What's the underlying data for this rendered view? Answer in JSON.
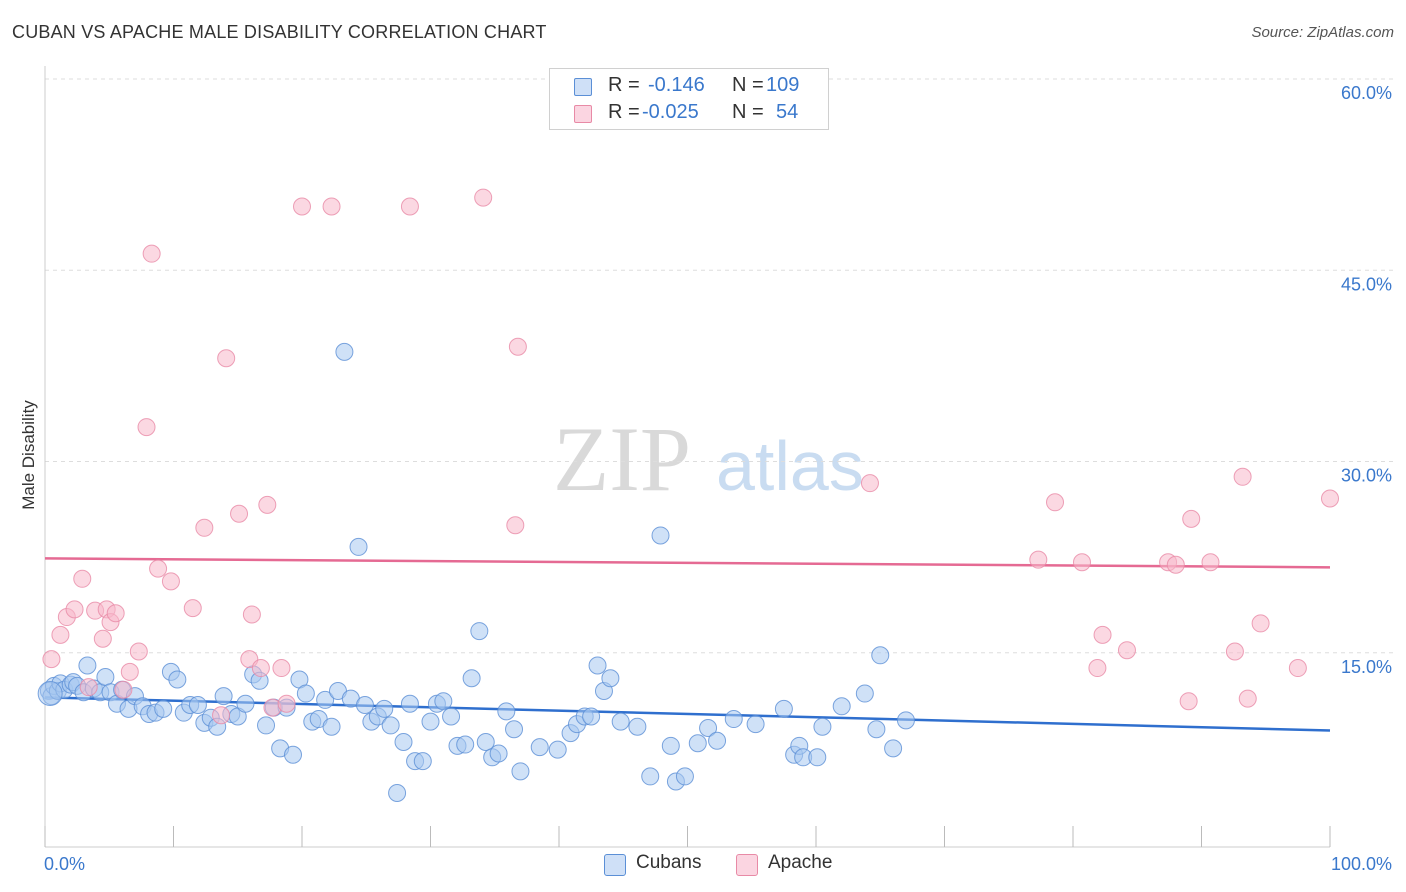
{
  "header": {
    "title": "CUBAN VS APACHE MALE DISABILITY CORRELATION CHART",
    "source": "Source: ZipAtlas.com"
  },
  "legend_top": {
    "rows": [
      {
        "r_label": "R =",
        "r_value": "-0.146",
        "n_label": "N =",
        "n_value": "109",
        "color": "#a8c8f0"
      },
      {
        "r_label": "R =",
        "r_value": "-0.025",
        "n_label": "N =",
        "n_value": "54",
        "color": "#f7b8cb"
      }
    ]
  },
  "bottom_legend": [
    {
      "label": "Cubans",
      "color": "#a8c8f0"
    },
    {
      "label": "Apache",
      "color": "#f7b8cb"
    }
  ],
  "watermark": {
    "zip": "ZIP",
    "atlas": "atlas"
  },
  "colors": {
    "blue_fill": "#a8c8f0",
    "blue_stroke": "#5b8fd6",
    "blue_line": "#2f6fce",
    "pink_fill": "#f7b8cb",
    "pink_stroke": "#e88aa6",
    "pink_line": "#e56a93",
    "tick_text": "#3a78cc",
    "grid": "#dddddd"
  },
  "chart_data": {
    "type": "scatter",
    "title": "CUBAN VS APACHE MALE DISABILITY CORRELATION CHART",
    "xlabel": "",
    "ylabel": "Male Disability",
    "xlim": [
      0,
      100
    ],
    "ylim": [
      0,
      60
    ],
    "x_tick_labels": [
      "0.0%",
      "100.0%"
    ],
    "y_ticks": [
      15,
      30,
      45,
      60
    ],
    "y_tick_labels": [
      "15.0%",
      "30.0%",
      "45.0%",
      "60.0%"
    ],
    "grid": true,
    "legend_position": "top-center",
    "series": [
      {
        "name": "Cubans",
        "r": -0.146,
        "n": 109,
        "trend": {
          "x": [
            0,
            100
          ],
          "y": [
            11.5,
            8.9
          ]
        },
        "points": [
          [
            0.3,
            12.0
          ],
          [
            0.5,
            11.6
          ],
          [
            0.7,
            12.4
          ],
          [
            1.0,
            12.0
          ],
          [
            1.2,
            12.6
          ],
          [
            1.5,
            12.1
          ],
          [
            2.0,
            12.5
          ],
          [
            2.2,
            12.7
          ],
          [
            2.5,
            12.4
          ],
          [
            3.0,
            11.9
          ],
          [
            3.3,
            14.0
          ],
          [
            3.8,
            12.2
          ],
          [
            4.3,
            11.9
          ],
          [
            4.7,
            13.1
          ],
          [
            5.1,
            11.9
          ],
          [
            5.6,
            11.0
          ],
          [
            6.0,
            12.1
          ],
          [
            6.5,
            10.6
          ],
          [
            7.0,
            11.6
          ],
          [
            7.6,
            10.8
          ],
          [
            8.1,
            10.2
          ],
          [
            8.6,
            10.3
          ],
          [
            9.2,
            10.6
          ],
          [
            9.8,
            13.5
          ],
          [
            10.3,
            12.9
          ],
          [
            10.8,
            10.3
          ],
          [
            11.3,
            10.9
          ],
          [
            11.9,
            10.9
          ],
          [
            12.4,
            9.5
          ],
          [
            12.9,
            9.9
          ],
          [
            13.4,
            9.2
          ],
          [
            13.9,
            11.6
          ],
          [
            14.5,
            10.2
          ],
          [
            15.0,
            10.0
          ],
          [
            15.6,
            11.0
          ],
          [
            16.2,
            13.3
          ],
          [
            16.7,
            12.8
          ],
          [
            17.2,
            9.3
          ],
          [
            17.8,
            10.7
          ],
          [
            18.3,
            7.5
          ],
          [
            18.8,
            10.7
          ],
          [
            19.3,
            7.0
          ],
          [
            19.8,
            12.9
          ],
          [
            20.3,
            11.8
          ],
          [
            20.8,
            9.6
          ],
          [
            21.3,
            9.8
          ],
          [
            21.8,
            11.3
          ],
          [
            22.3,
            9.2
          ],
          [
            22.8,
            12.0
          ],
          [
            23.3,
            38.6
          ],
          [
            23.8,
            11.4
          ],
          [
            24.4,
            23.3
          ],
          [
            24.9,
            10.9
          ],
          [
            25.4,
            9.6
          ],
          [
            25.9,
            10.0
          ],
          [
            26.4,
            10.6
          ],
          [
            26.9,
            9.3
          ],
          [
            27.4,
            4.0
          ],
          [
            27.9,
            8.0
          ],
          [
            28.4,
            11.0
          ],
          [
            28.8,
            6.5
          ],
          [
            29.4,
            6.5
          ],
          [
            30.0,
            9.6
          ],
          [
            30.5,
            11.0
          ],
          [
            31.0,
            11.2
          ],
          [
            31.6,
            10.0
          ],
          [
            32.1,
            7.7
          ],
          [
            32.7,
            7.8
          ],
          [
            33.2,
            13.0
          ],
          [
            33.8,
            16.7
          ],
          [
            34.3,
            8.0
          ],
          [
            34.8,
            6.8
          ],
          [
            35.3,
            7.1
          ],
          [
            35.9,
            10.4
          ],
          [
            36.5,
            9.0
          ],
          [
            37.0,
            5.7
          ],
          [
            38.5,
            7.6
          ],
          [
            39.9,
            7.4
          ],
          [
            40.9,
            8.7
          ],
          [
            41.4,
            9.4
          ],
          [
            42.0,
            10.0
          ],
          [
            42.5,
            10.0
          ],
          [
            43.0,
            14.0
          ],
          [
            43.5,
            12.0
          ],
          [
            44.0,
            13.0
          ],
          [
            44.8,
            9.6
          ],
          [
            46.1,
            9.2
          ],
          [
            47.1,
            5.3
          ],
          [
            47.9,
            24.2
          ],
          [
            48.7,
            7.7
          ],
          [
            49.1,
            4.9
          ],
          [
            49.8,
            5.3
          ],
          [
            50.8,
            7.9
          ],
          [
            51.6,
            9.1
          ],
          [
            52.3,
            8.1
          ],
          [
            53.6,
            9.8
          ],
          [
            55.3,
            9.4
          ],
          [
            57.5,
            10.6
          ],
          [
            58.3,
            7.0
          ],
          [
            58.7,
            7.7
          ],
          [
            59.0,
            6.8
          ],
          [
            60.1,
            6.8
          ],
          [
            60.5,
            9.2
          ],
          [
            62.0,
            10.8
          ],
          [
            63.8,
            11.8
          ],
          [
            64.7,
            9.0
          ],
          [
            65.0,
            14.8
          ],
          [
            66.0,
            7.5
          ],
          [
            67.0,
            9.7
          ]
        ]
      },
      {
        "name": "Apache",
        "r": -0.025,
        "n": 54,
        "trend": {
          "x": [
            0,
            100
          ],
          "y": [
            22.4,
            21.7
          ]
        },
        "points": [
          [
            0.5,
            14.5
          ],
          [
            1.2,
            16.4
          ],
          [
            1.7,
            17.8
          ],
          [
            2.3,
            18.4
          ],
          [
            2.9,
            20.8
          ],
          [
            3.4,
            12.3
          ],
          [
            3.9,
            18.3
          ],
          [
            4.5,
            16.1
          ],
          [
            4.8,
            18.4
          ],
          [
            5.1,
            17.4
          ],
          [
            5.5,
            18.1
          ],
          [
            6.1,
            12.1
          ],
          [
            6.6,
            13.5
          ],
          [
            7.3,
            15.1
          ],
          [
            7.9,
            32.7
          ],
          [
            8.3,
            46.3
          ],
          [
            8.8,
            21.6
          ],
          [
            9.8,
            20.6
          ],
          [
            11.5,
            18.5
          ],
          [
            12.4,
            24.8
          ],
          [
            13.7,
            10.1
          ],
          [
            14.1,
            38.1
          ],
          [
            15.1,
            25.9
          ],
          [
            15.9,
            14.5
          ],
          [
            16.1,
            18.0
          ],
          [
            16.8,
            13.8
          ],
          [
            17.3,
            26.6
          ],
          [
            17.7,
            10.7
          ],
          [
            18.4,
            13.8
          ],
          [
            18.8,
            11.0
          ],
          [
            20.0,
            50.0
          ],
          [
            22.3,
            50.0
          ],
          [
            28.4,
            50.0
          ],
          [
            34.1,
            50.7
          ],
          [
            36.6,
            25.0
          ],
          [
            36.8,
            39.0
          ],
          [
            64.2,
            28.3
          ],
          [
            77.3,
            22.3
          ],
          [
            78.6,
            26.8
          ],
          [
            80.7,
            22.1
          ],
          [
            81.9,
            13.8
          ],
          [
            82.3,
            16.4
          ],
          [
            84.2,
            15.2
          ],
          [
            87.4,
            22.1
          ],
          [
            88.0,
            21.9
          ],
          [
            89.0,
            11.2
          ],
          [
            89.2,
            25.5
          ],
          [
            90.7,
            22.1
          ],
          [
            92.6,
            15.1
          ],
          [
            93.2,
            28.8
          ],
          [
            93.6,
            11.4
          ],
          [
            94.6,
            17.3
          ],
          [
            97.5,
            13.8
          ],
          [
            100.0,
            27.1
          ]
        ]
      }
    ]
  }
}
